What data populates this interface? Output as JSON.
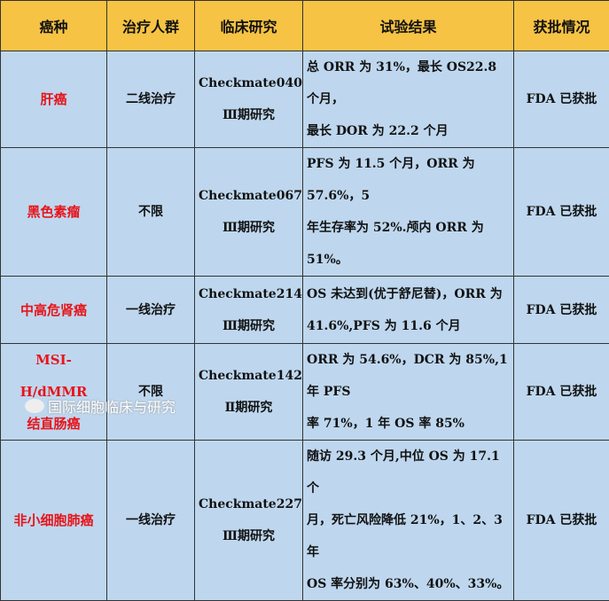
{
  "headers": [
    "癌种",
    "治疗人群",
    "临床研究",
    "试验结果",
    "获批情况"
  ],
  "rows": [
    {
      "cancer": [
        "肝癌"
      ],
      "population": "二线治疗",
      "study": [
        "Checkmate040",
        "Ⅲ期研究"
      ],
      "result": [
        "总 ORR 为 31%，最长 OS22.8 个月，",
        "最长 DOR 为 22.2 个月"
      ],
      "approval": "FDA 已获批"
    },
    {
      "cancer": [
        "黑色素瘤"
      ],
      "population": "不限",
      "study": [
        "Checkmate067",
        "Ⅲ期研究"
      ],
      "result": [
        "PFS 为 11.5 个月，ORR 为 57.6%，5",
        "年生存率为 52%.颅内 ORR 为 51%。"
      ],
      "approval": "FDA 已获批"
    },
    {
      "cancer": [
        "中高危肾癌"
      ],
      "population": "一线治疗",
      "study": [
        "Checkmate214",
        "Ⅲ期研究"
      ],
      "result": [
        "OS 未达到(优于舒尼替)，ORR 为",
        "41.6%,PFS 为 11.6 个月"
      ],
      "approval": "FDA 已获批"
    },
    {
      "cancer": [
        "MSI-H/dMMR",
        "结直肠癌"
      ],
      "population": "不限",
      "study": [
        "Checkmate142",
        "Ⅱ期研究"
      ],
      "result": [
        "ORR 为 54.6%，DCR 为 85%,1 年 PFS",
        "率 71%，1 年 OS 率 85%"
      ],
      "approval": "FDA 已获批"
    },
    {
      "cancer": [
        "非小细胞肺癌"
      ],
      "population": "一线治疗",
      "study": [
        "Checkmate227",
        "Ⅲ期研究"
      ],
      "result": [
        "随访 29.3 个月,中位 OS 为 17.1 个",
        "月，死亡风险降低 21%，1、2、3 年",
        "OS 率分别为 63%、40%、33%。"
      ],
      "approval": "FDA 已获批"
    }
  ],
  "watermark": "国际细胞临床与研究",
  "colors": {
    "header_bg": "#f6c344",
    "cell_bg": "#bed7ee",
    "cancer_text": "#e8141a"
  }
}
